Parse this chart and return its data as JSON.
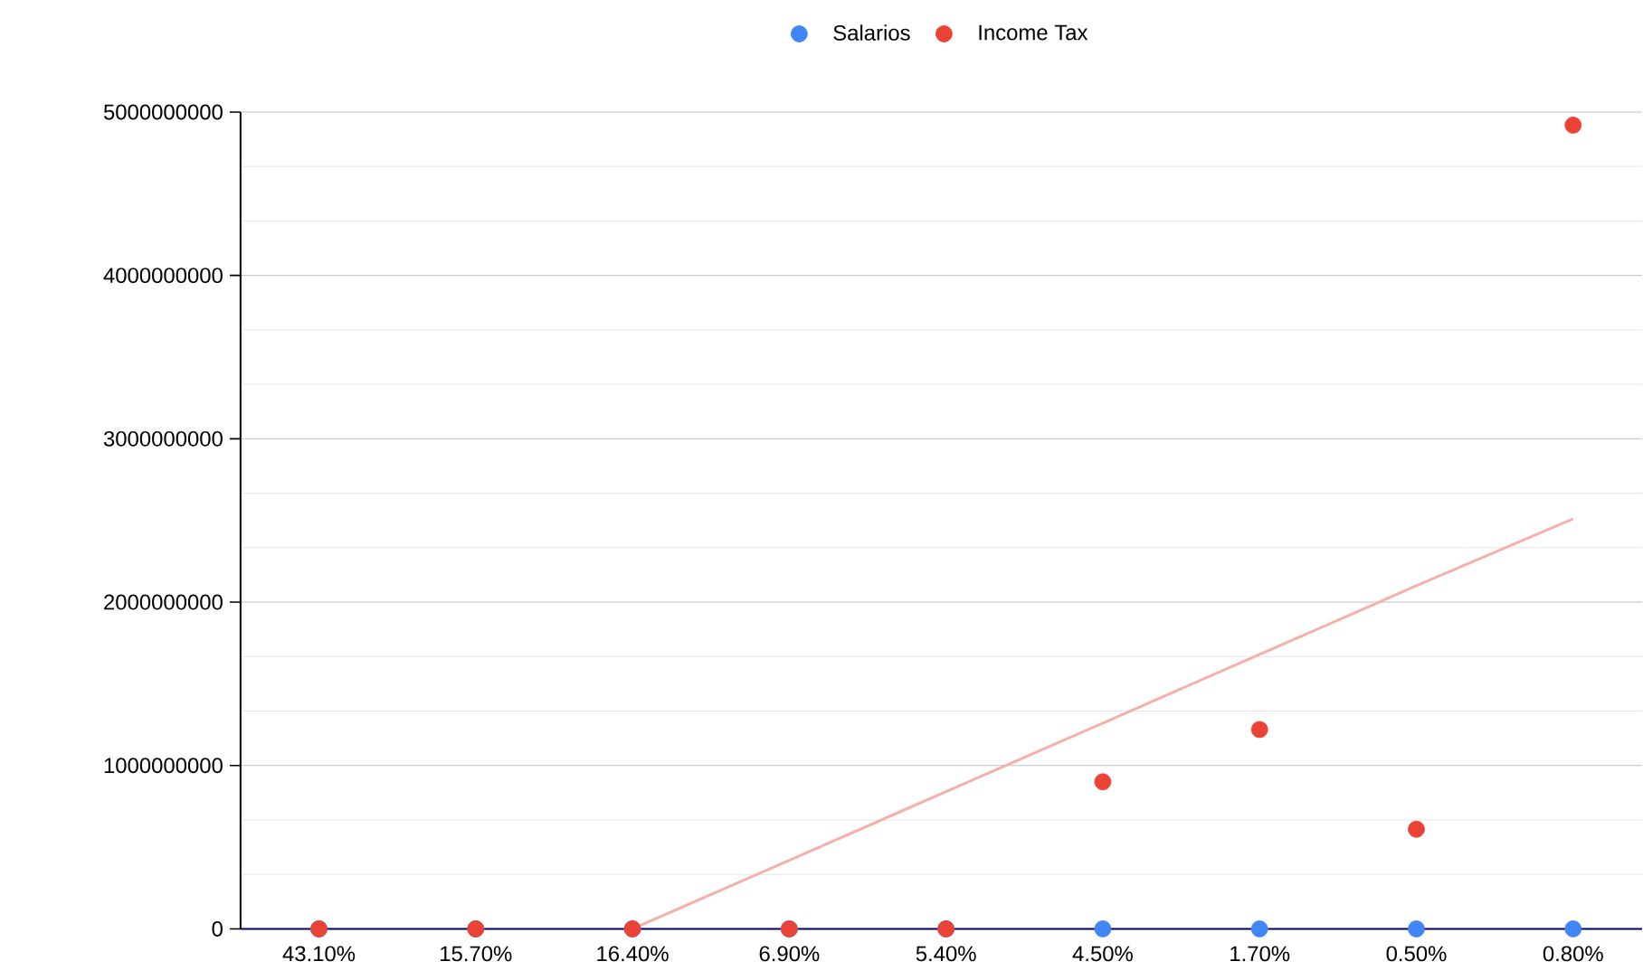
{
  "chart_data": {
    "type": "scatter",
    "categories": [
      "43.10%",
      "15.70%",
      "16.40%",
      "6.90%",
      "5.40%",
      "4.50%",
      "1.70%",
      "0.50%",
      "0.80%"
    ],
    "series": [
      {
        "name": "Salarios",
        "marker": "circle",
        "color": "#4285f4",
        "values": [
          0,
          0,
          0,
          0,
          0,
          0,
          0,
          0,
          0
        ]
      },
      {
        "name": "Income Tax",
        "marker": "circle",
        "color": "#ea4335",
        "values": [
          0,
          0,
          0,
          0,
          0,
          900000000,
          1220000000,
          610000000,
          4920000000
        ]
      },
      {
        "type": "line",
        "marker": "none",
        "color": "#f4b0aa",
        "values": [
          null,
          null,
          0,
          420000000,
          840000000,
          1260000000,
          1680000000,
          2100000000,
          2510000000
        ]
      }
    ],
    "ylim": [
      0,
      5000000000
    ],
    "yticks": [
      0,
      1000000000,
      2000000000,
      3000000000,
      4000000000,
      5000000000
    ],
    "grid": "y",
    "legend": "top"
  }
}
